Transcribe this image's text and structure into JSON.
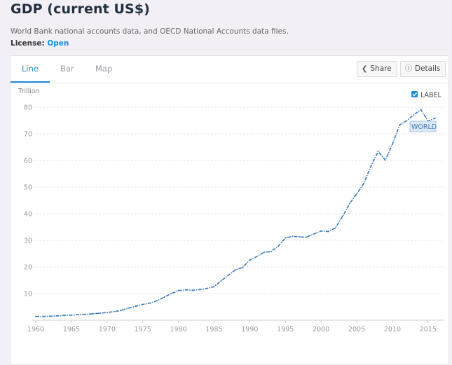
{
  "header": {
    "title": "GDP (current US$)",
    "source": "World Bank national accounts data, and OECD National Accounts data files.",
    "license_label": "License: ",
    "license_value": "Open"
  },
  "tabs": [
    {
      "label": "Line",
      "active": true
    },
    {
      "label": "Bar",
      "active": false
    },
    {
      "label": "Map",
      "active": false
    }
  ],
  "toolbar": {
    "share_label": "Share",
    "details_label": "Details",
    "share_icon": "share-icon",
    "details_icon": "info-icon"
  },
  "legend": {
    "label": "LABEL",
    "checked": true
  },
  "colors": {
    "series": "#3a7ab8",
    "accent": "#1c8fd6",
    "grid": "#d9d9d9"
  },
  "chart_data": {
    "type": "line",
    "ylabel": "Trillion",
    "xlabel": "",
    "xlim": [
      1960,
      2016
    ],
    "ylim": [
      0,
      80
    ],
    "x_ticks": [
      1960,
      1965,
      1970,
      1975,
      1980,
      1985,
      1990,
      1995,
      2000,
      2005,
      2010,
      2015
    ],
    "y_ticks": [
      10,
      20,
      30,
      40,
      50,
      60,
      70,
      80
    ],
    "grid": "horizontal-dashed",
    "series": [
      {
        "name": "WORLD",
        "x": [
          1960,
          1961,
          1962,
          1963,
          1964,
          1965,
          1966,
          1967,
          1968,
          1969,
          1970,
          1971,
          1972,
          1973,
          1974,
          1975,
          1976,
          1977,
          1978,
          1979,
          1980,
          1981,
          1982,
          1983,
          1984,
          1985,
          1986,
          1987,
          1988,
          1989,
          1990,
          1991,
          1992,
          1993,
          1994,
          1995,
          1996,
          1997,
          1998,
          1999,
          2000,
          2001,
          2002,
          2003,
          2004,
          2005,
          2006,
          2007,
          2008,
          2009,
          2010,
          2011,
          2012,
          2013,
          2014,
          2015,
          2016
        ],
        "values": [
          1.4,
          1.4,
          1.5,
          1.6,
          1.8,
          1.9,
          2.1,
          2.2,
          2.4,
          2.6,
          2.9,
          3.2,
          3.7,
          4.5,
          5.2,
          5.9,
          6.4,
          7.3,
          8.6,
          10.0,
          11.1,
          11.4,
          11.2,
          11.5,
          11.9,
          12.6,
          14.8,
          16.9,
          18.9,
          19.8,
          22.6,
          23.9,
          25.5,
          25.8,
          27.8,
          30.9,
          31.5,
          31.3,
          31.2,
          32.4,
          33.5,
          33.3,
          34.6,
          38.9,
          43.8,
          47.4,
          51.4,
          57.9,
          63.4,
          60.1,
          66.0,
          73.3,
          74.9,
          77.1,
          79.1,
          74.8,
          75.9
        ]
      }
    ]
  }
}
